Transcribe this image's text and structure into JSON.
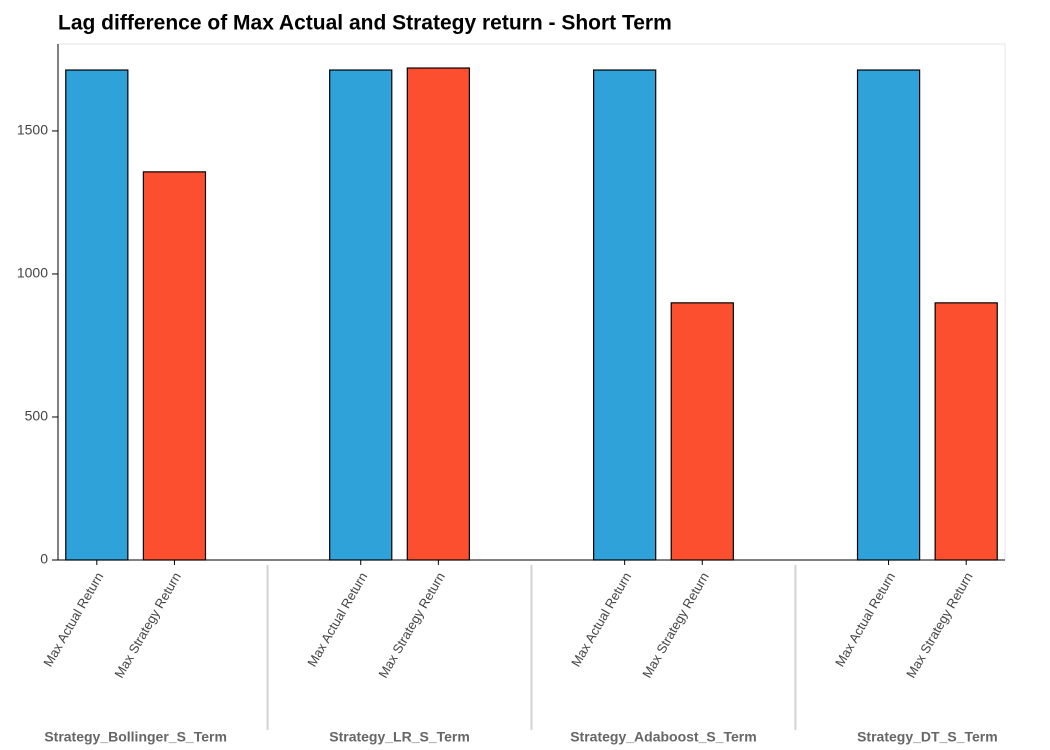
{
  "chart_data": {
    "type": "grouped_bar",
    "title": "Lag difference of Max Actual and Strategy return - Short Term",
    "categories": [
      "Strategy_Bollinger_S_Term",
      "Strategy_LR_S_Term",
      "Strategy_Adaboost_S_Term",
      "Strategy_DT_S_Term"
    ],
    "series": [
      {
        "name": "Max Actual Return",
        "color": "#30a2da",
        "values": [
          1713,
          1713,
          1713,
          1713
        ]
      },
      {
        "name": "Max Strategy Return",
        "color": "#fc4f30",
        "values": [
          1357,
          1720,
          899,
          899
        ]
      }
    ],
    "ylim": [
      0,
      1804
    ],
    "yticks": [
      0,
      500,
      1000,
      1500
    ]
  }
}
